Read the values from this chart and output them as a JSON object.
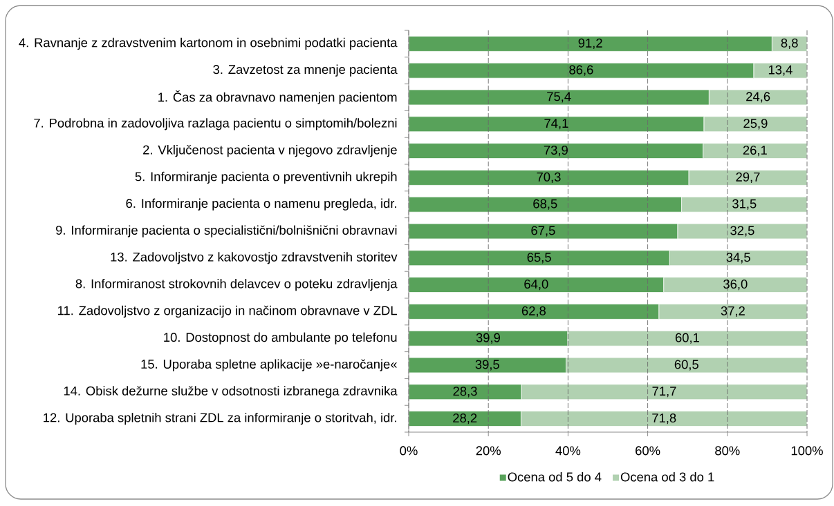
{
  "chart_data": {
    "type": "bar",
    "orientation": "horizontal",
    "stacked": true,
    "categories": [
      "4. Ravnanje z zdravstvenim kartonom in osebnimi podatki pacienta",
      "3. Zavzetost za mnenje pacienta",
      "1. Čas za obravnavo namenjen pacientom",
      "7. Podrobna in zadovoljiva razlaga pacientu o simptomih/bolezni",
      "2. Vključenost pacienta v njegovo zdravljenje",
      "5. Informiranje pacienta o preventivnih ukrepih",
      "6. Informiranje pacienta o namenu pregleda, idr.",
      "9. Informiranje pacienta o specialistični/bolnišnični obravnavi",
      "13. Zadovoljstvo z kakovostjo zdravstvenih storitev",
      "8. Informiranost strokovnih delavcev o poteku zdravljenja",
      "11. Zadovoljstvo z organizacijo in načinom obravnave v ZDL",
      "10. Dostopnost do ambulante po telefonu",
      "15. Uporaba spletne aplikacije »e-naročanje«",
      "14. Obisk dežurne službe v odsotnosti izbranega zdravnika",
      "12. Uporaba spletnih strani ZDL za informiranje o storitvah, idr."
    ],
    "series": [
      {
        "name": "Ocena od 5 do 4",
        "color": "#58a25a",
        "values": [
          91.2,
          86.6,
          75.4,
          74.1,
          73.9,
          70.3,
          68.5,
          67.5,
          65.5,
          64.0,
          62.8,
          39.9,
          39.5,
          28.3,
          28.2
        ],
        "value_labels": [
          "91,2",
          "86,6",
          "75,4",
          "74,1",
          "73,9",
          "70,3",
          "68,5",
          "67,5",
          "65,5",
          "64,0",
          "62,8",
          "39,9",
          "39,5",
          "28,3",
          "28,2"
        ]
      },
      {
        "name": "Ocena od 3 do 1",
        "color": "#b1d1b1",
        "values": [
          8.8,
          13.4,
          24.6,
          25.9,
          26.1,
          29.7,
          31.5,
          32.5,
          34.5,
          36.0,
          37.2,
          60.1,
          60.5,
          71.7,
          71.8
        ],
        "value_labels": [
          "8,8",
          "13,4",
          "24,6",
          "25,9",
          "26,1",
          "29,7",
          "31,5",
          "32,5",
          "34,5",
          "36,0",
          "37,2",
          "60,1",
          "60,5",
          "71,7",
          "71,8"
        ]
      }
    ],
    "xlim": [
      0,
      100
    ],
    "xticks": [
      {
        "value": 0,
        "label": "0%"
      },
      {
        "value": 20,
        "label": "20%"
      },
      {
        "value": 40,
        "label": "40%"
      },
      {
        "value": 60,
        "label": "60%"
      },
      {
        "value": 80,
        "label": "80%"
      },
      {
        "value": 100,
        "label": "100%"
      }
    ],
    "grid": "x",
    "legend": "bottom"
  }
}
